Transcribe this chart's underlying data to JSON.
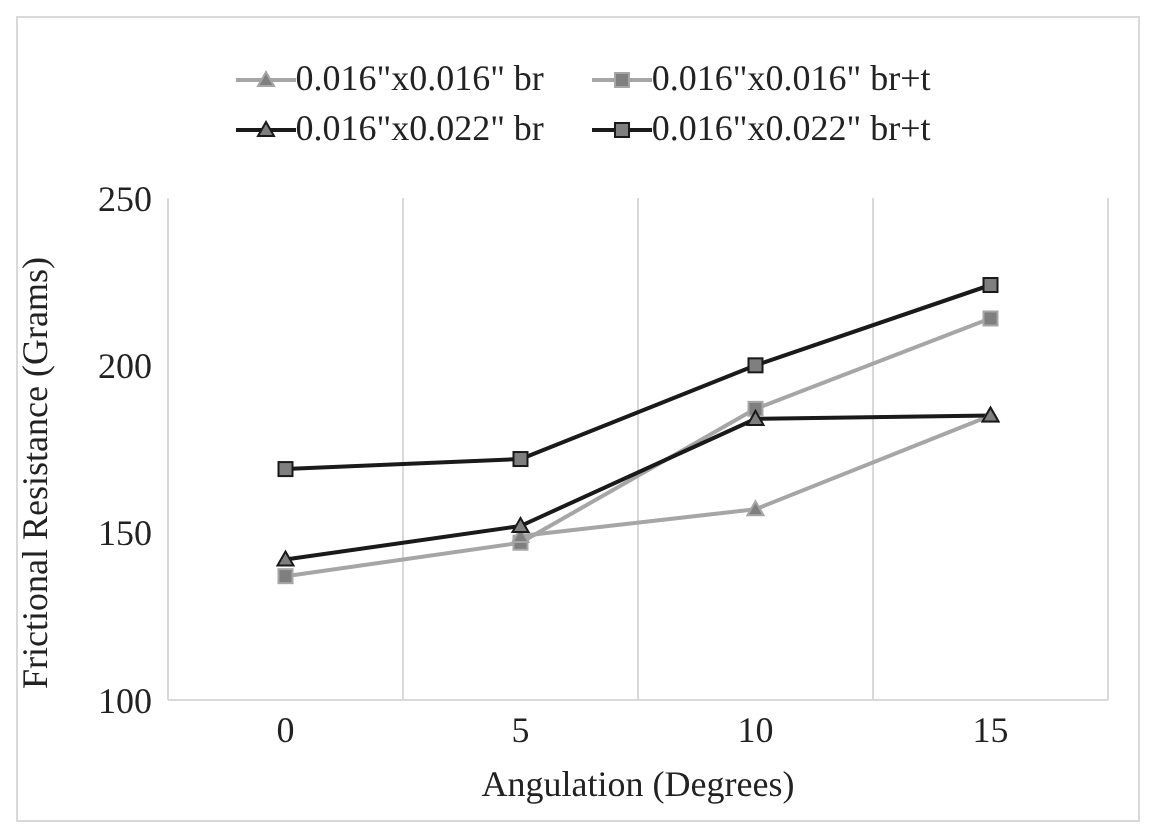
{
  "chart_data": {
    "type": "line",
    "xlabel": "Angulation (Degrees)",
    "ylabel": "Frictional Resistance (Grams)",
    "categories": [
      "0",
      "5",
      "10",
      "15"
    ],
    "series": [
      {
        "name": "0.016\"x0.016\" br",
        "color": "#a6a6a6",
        "marker": "triangle",
        "values": [
          null,
          149,
          157,
          185
        ]
      },
      {
        "name": "0.016\"x0.016\" br+t",
        "color": "#a6a6a6",
        "marker": "square",
        "values": [
          137,
          147,
          187,
          214
        ]
      },
      {
        "name": "0.016\"x0.022\" br",
        "color": "#1a1a1a",
        "marker": "triangle",
        "values": [
          142,
          152,
          184,
          185
        ]
      },
      {
        "name": "0.016\"x0.022\" br+t",
        "color": "#1a1a1a",
        "marker": "square",
        "values": [
          169,
          172,
          200,
          224
        ]
      }
    ],
    "ylim": [
      100,
      250
    ],
    "yticks": [
      100,
      150,
      200,
      250
    ],
    "grid": "x",
    "legend": "top"
  }
}
